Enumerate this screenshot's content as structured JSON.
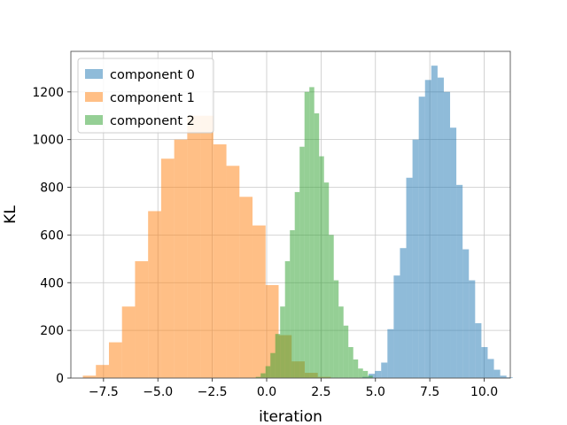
{
  "chart_data": {
    "type": "histogram",
    "title": "",
    "xlabel": "iteration",
    "ylabel": "KL",
    "xlim": [
      -9.0,
      11.2
    ],
    "ylim": [
      0,
      1370
    ],
    "grid": true,
    "legend_position": "top-left",
    "xticks": [
      -7.5,
      -5.0,
      -2.5,
      0.0,
      2.5,
      5.0,
      7.5,
      10.0
    ],
    "xtick_labels": [
      "−7.5",
      "−5.0",
      "−2.5",
      "0.0",
      "2.5",
      "5.0",
      "7.5",
      "10.0"
    ],
    "yticks": [
      0,
      200,
      400,
      600,
      800,
      1000,
      1200
    ],
    "ytick_labels": [
      "0",
      "200",
      "400",
      "600",
      "800",
      "1000",
      "1200"
    ],
    "series": [
      {
        "name": "component 0",
        "color": "#1f77b4",
        "opacity": 0.5,
        "bin_start": 4.4,
        "bin_width": 0.288,
        "counts": [
          5,
          18,
          30,
          65,
          205,
          430,
          545,
          840,
          1000,
          1180,
          1250,
          1310,
          1260,
          1200,
          1050,
          810,
          540,
          410,
          230,
          130,
          80,
          35,
          10,
          3
        ]
      },
      {
        "name": "component 1",
        "color": "#ff7f0e",
        "opacity": 0.5,
        "bin_start": -8.45,
        "bin_width": 0.6,
        "counts": [
          10,
          55,
          150,
          300,
          490,
          700,
          920,
          1000,
          1100,
          1100,
          980,
          890,
          760,
          640,
          390,
          180,
          70,
          22,
          5
        ]
      },
      {
        "name": "component 2",
        "color": "#2ca02c",
        "opacity": 0.5,
        "bin_start": -0.5,
        "bin_width": 0.224,
        "counts": [
          5,
          20,
          50,
          105,
          185,
          300,
          490,
          620,
          780,
          970,
          1200,
          1220,
          1110,
          930,
          820,
          600,
          410,
          300,
          220,
          130,
          78,
          40,
          30,
          10
        ]
      }
    ]
  }
}
